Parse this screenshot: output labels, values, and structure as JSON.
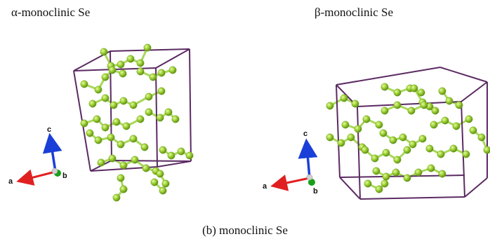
{
  "panels": [
    {
      "title": "α-monoclinic Se",
      "axes": {
        "a": "a",
        "b": "b",
        "c": "c"
      }
    },
    {
      "title": "β-monoclinic Se",
      "axes": {
        "a": "a",
        "b": "b",
        "c": "c"
      }
    }
  ],
  "caption": "(b) monoclinic Se",
  "colors": {
    "cell": "#5b2a62",
    "atom": "#9fd43a",
    "atom_dark": "#6ea51e",
    "bond": "#a8d85a",
    "axis_a": "#e02020",
    "axis_b": "#18a018",
    "axis_c": "#1a3fd8",
    "origin": "#c8c8c8"
  }
}
